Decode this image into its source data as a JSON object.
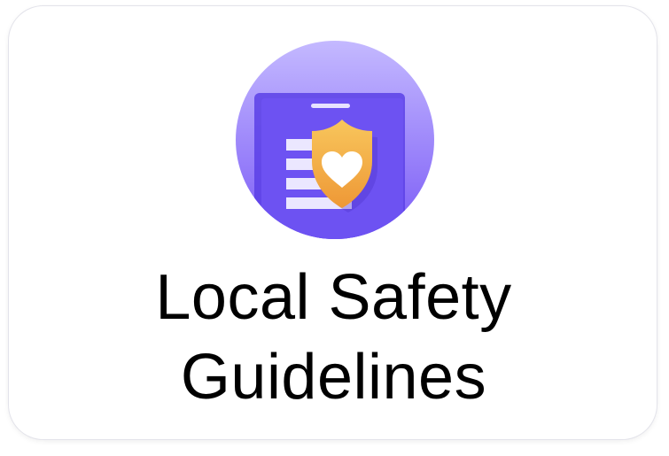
{
  "tile": {
    "title_line1": "Local Safety",
    "title_line2": "Guidelines",
    "icon": "clipboard-shield-heart-icon"
  },
  "colors": {
    "circle_top": "#c2b6ff",
    "circle_bottom": "#7b5cf5",
    "clipboard": "#6a4ff0",
    "clipboard_dark": "#5a3fe0",
    "lines": "#e9e4ff",
    "shield_top": "#f6c25a",
    "shield_bottom": "#ef9b38",
    "heart": "#ffffff"
  }
}
